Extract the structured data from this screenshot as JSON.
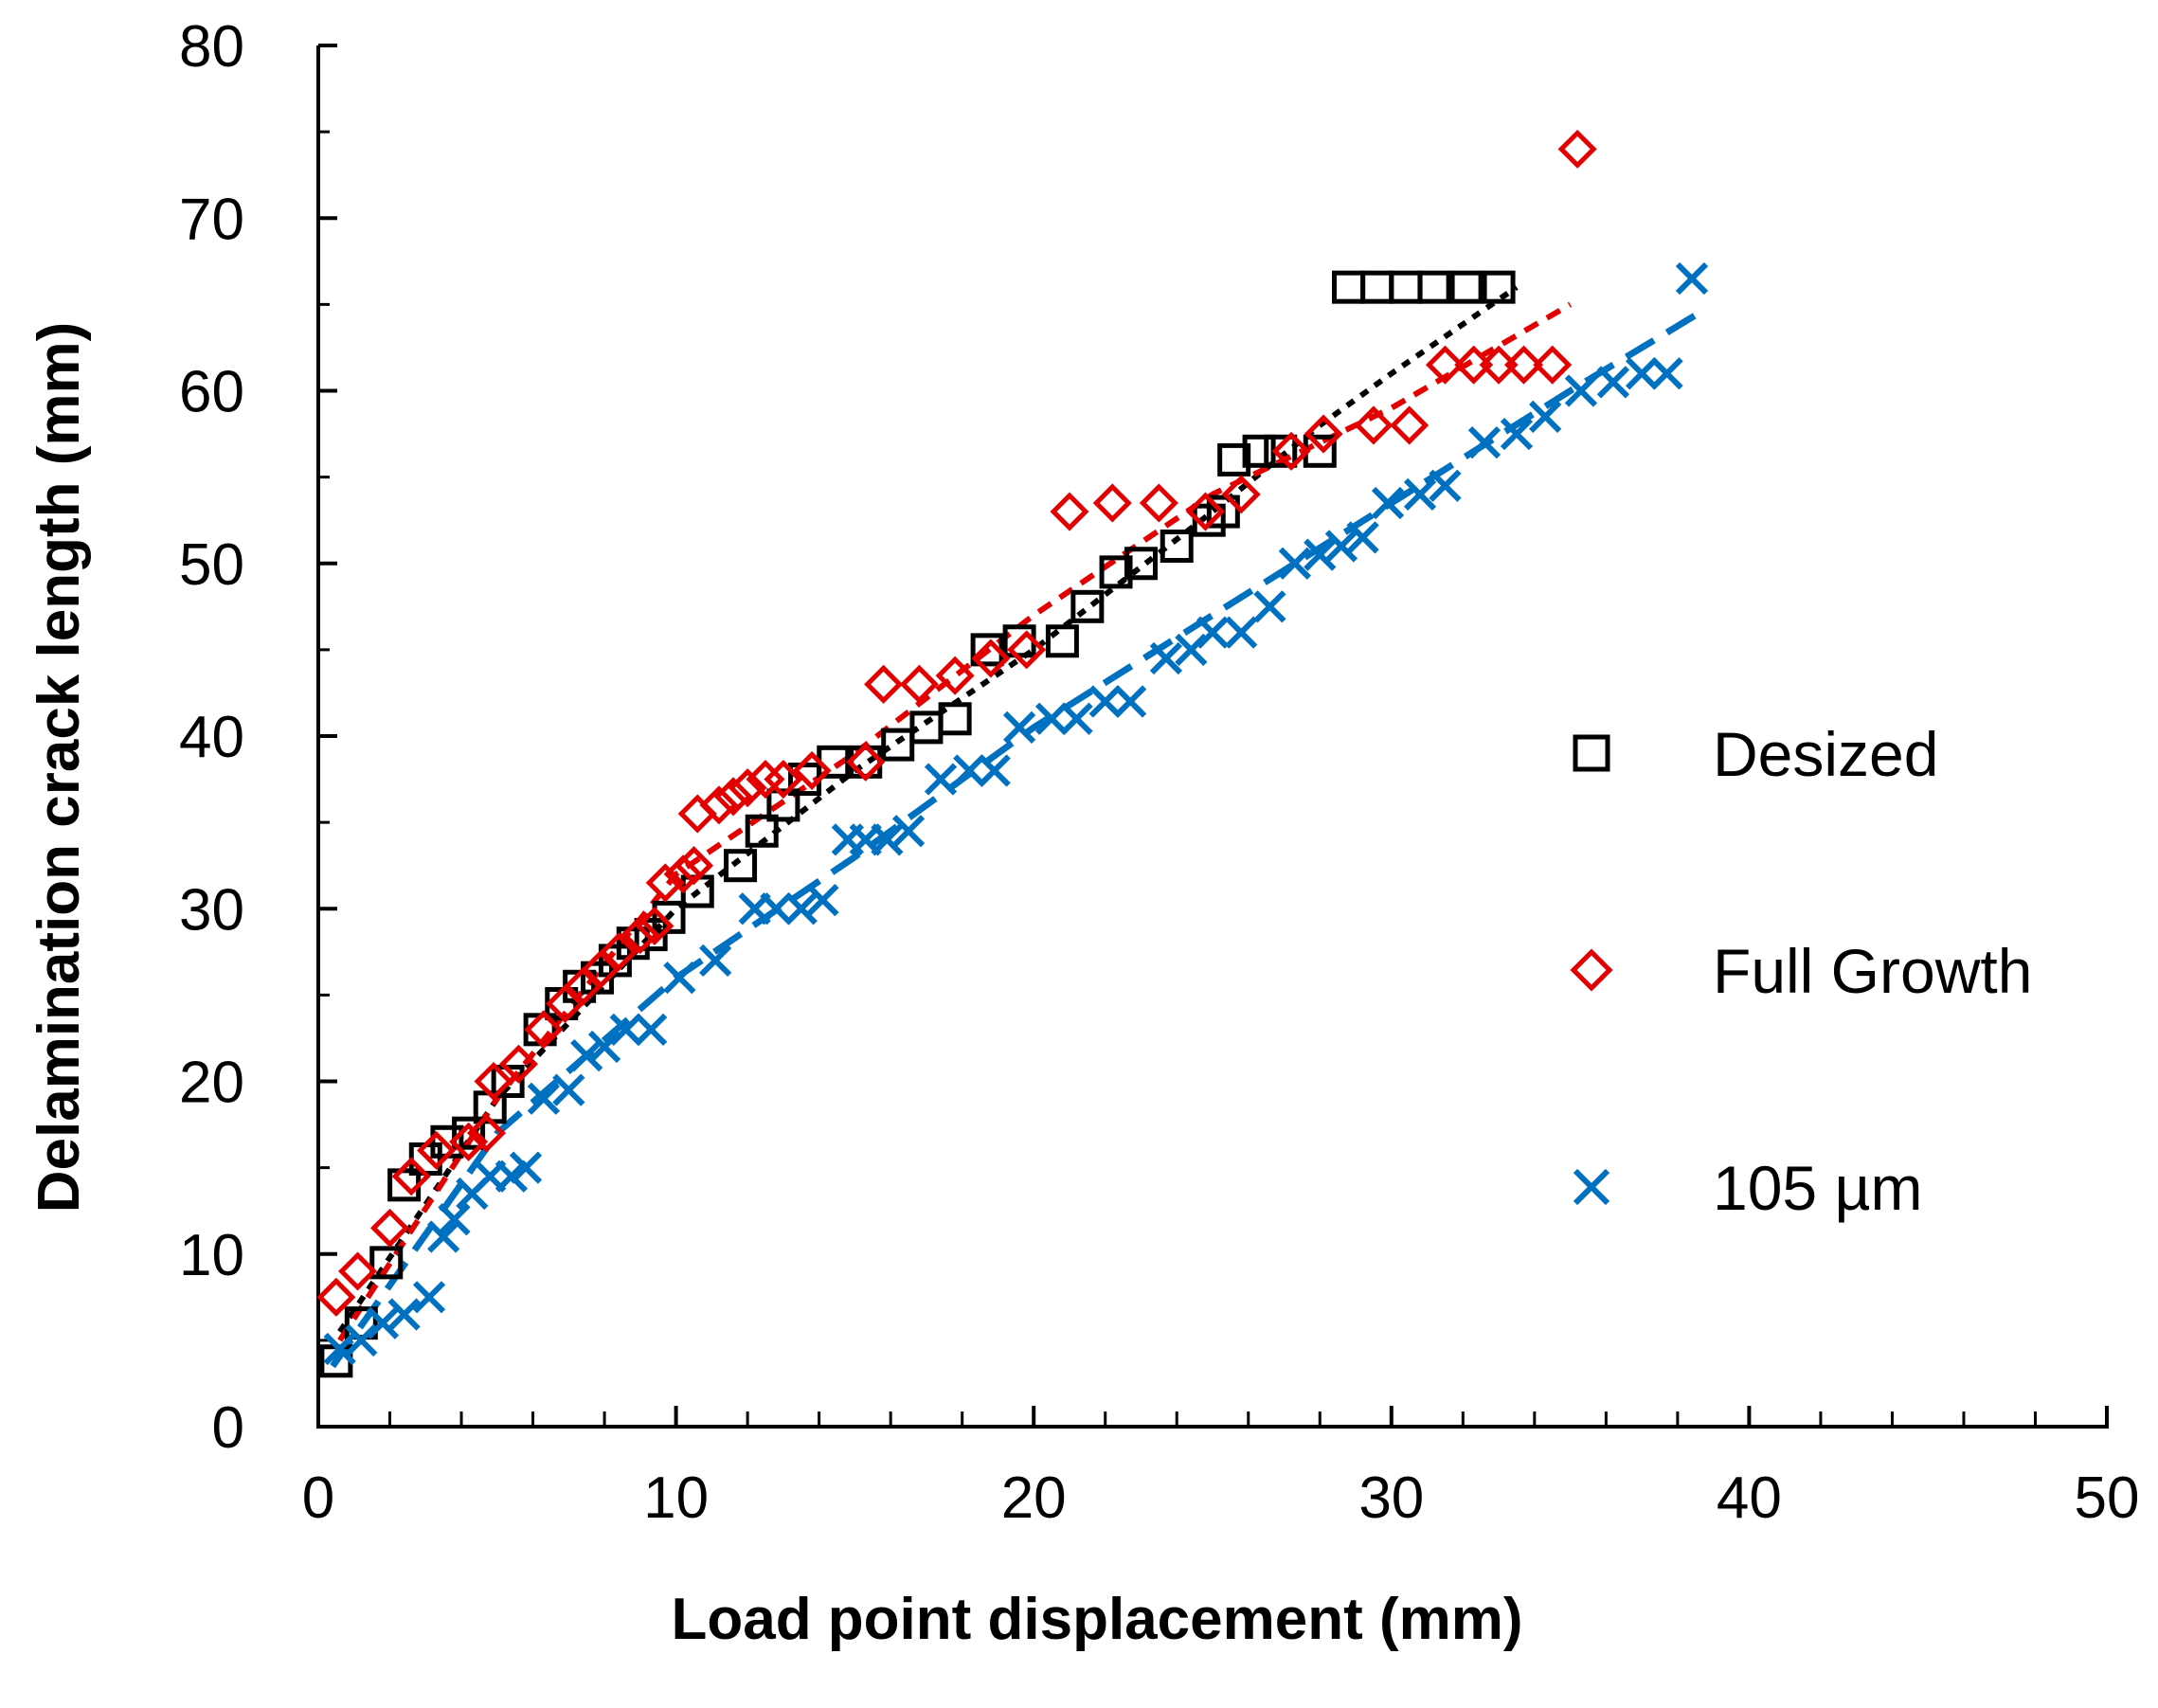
{
  "chart_data": {
    "type": "scatter",
    "title": "",
    "xlabel": "Load point displacement (mm)",
    "ylabel": "Delamination crack length (mm)",
    "xlim": [
      0,
      50
    ],
    "ylim": [
      0,
      80
    ],
    "xticks": [
      "0",
      "10",
      "20",
      "30",
      "40",
      "50"
    ],
    "yticks": [
      "0",
      "10",
      "20",
      "30",
      "40",
      "50",
      "60",
      "70",
      "80"
    ],
    "grid": false,
    "legend_position": "right",
    "series": [
      {
        "name": "Desized",
        "marker": "square",
        "color": "#000000",
        "trend": [
          [
            0.6,
            5.5
          ],
          [
            5,
            19
          ],
          [
            10,
            30
          ],
          [
            15,
            38
          ],
          [
            20,
            45
          ],
          [
            25,
            53
          ],
          [
            28,
            58
          ],
          [
            30,
            61
          ],
          [
            33.5,
            66
          ]
        ],
        "points": [
          [
            0.5,
            3.8
          ],
          [
            1.2,
            6
          ],
          [
            1.9,
            9.5
          ],
          [
            2.4,
            14
          ],
          [
            3,
            15.5
          ],
          [
            3.6,
            16.5
          ],
          [
            4.2,
            17
          ],
          [
            4.8,
            18.5
          ],
          [
            5.3,
            20
          ],
          [
            6.2,
            23
          ],
          [
            6.8,
            24.5
          ],
          [
            7.3,
            25.5
          ],
          [
            7.8,
            26
          ],
          [
            8.3,
            27
          ],
          [
            8.8,
            28
          ],
          [
            9.3,
            28.5
          ],
          [
            9.8,
            29.5
          ],
          [
            10.6,
            31
          ],
          [
            11.8,
            32.5
          ],
          [
            12.4,
            34.5
          ],
          [
            13,
            36
          ],
          [
            13.6,
            37.5
          ],
          [
            14.4,
            38.5
          ],
          [
            15.3,
            38.5
          ],
          [
            16.2,
            39.5
          ],
          [
            17,
            40.5
          ],
          [
            17.8,
            41
          ],
          [
            18.7,
            45
          ],
          [
            19.6,
            45.5
          ],
          [
            20.8,
            45.5
          ],
          [
            21.5,
            47.5
          ],
          [
            22.3,
            49.5
          ],
          [
            23,
            50
          ],
          [
            24,
            51
          ],
          [
            24.9,
            52.5
          ],
          [
            25.3,
            53
          ],
          [
            25.6,
            56
          ],
          [
            26.3,
            56.5
          ],
          [
            26.9,
            56.5
          ],
          [
            28,
            56.5
          ],
          [
            28.8,
            66
          ],
          [
            29.6,
            66
          ],
          [
            30.4,
            66
          ],
          [
            31.2,
            66
          ],
          [
            32.1,
            66
          ],
          [
            33,
            66
          ]
        ]
      },
      {
        "name": "Full Growth",
        "marker": "diamond",
        "color": "#e30000",
        "trend": [
          [
            0.6,
            5
          ],
          [
            5,
            19
          ],
          [
            10,
            32
          ],
          [
            15,
            39
          ],
          [
            20,
            47
          ],
          [
            25,
            54
          ],
          [
            30,
            59
          ],
          [
            35,
            65
          ]
        ],
        "points": [
          [
            0.5,
            7.5
          ],
          [
            1.1,
            9
          ],
          [
            2,
            11.5
          ],
          [
            2.6,
            14.5
          ],
          [
            3.3,
            16
          ],
          [
            4.2,
            16.5
          ],
          [
            4.7,
            17
          ],
          [
            4.9,
            20
          ],
          [
            5.6,
            21
          ],
          [
            6.3,
            23
          ],
          [
            6.9,
            24.5
          ],
          [
            7.4,
            25.5
          ],
          [
            7.9,
            26.5
          ],
          [
            8.4,
            27.5
          ],
          [
            9,
            28.5
          ],
          [
            9.4,
            29
          ],
          [
            9.7,
            31.5
          ],
          [
            10.2,
            32
          ],
          [
            10.5,
            32.5
          ],
          [
            10.6,
            35.5
          ],
          [
            11.2,
            36
          ],
          [
            11.6,
            36.5
          ],
          [
            12,
            37
          ],
          [
            12.5,
            37.5
          ],
          [
            13,
            37.5
          ],
          [
            13.8,
            38
          ],
          [
            15.3,
            38.5
          ],
          [
            15.8,
            43
          ],
          [
            16.8,
            43
          ],
          [
            17.8,
            43.5
          ],
          [
            18.8,
            44.5
          ],
          [
            19.8,
            45
          ],
          [
            21,
            53
          ],
          [
            22.2,
            53.5
          ],
          [
            23.5,
            53.5
          ],
          [
            24.8,
            53
          ],
          [
            25.8,
            54
          ],
          [
            27.2,
            56.5
          ],
          [
            28.1,
            57.5
          ],
          [
            29.5,
            58
          ],
          [
            30.5,
            58
          ],
          [
            31.5,
            61.5
          ],
          [
            32.3,
            61.5
          ],
          [
            33,
            61.5
          ],
          [
            33.7,
            61.5
          ],
          [
            34.5,
            61.5
          ],
          [
            35.2,
            74
          ]
        ]
      },
      {
        "name": "105 µm",
        "marker": "x",
        "color": "#0070c0",
        "trend": [
          [
            0.4,
            3.5
          ],
          [
            5,
            17
          ],
          [
            10,
            26
          ],
          [
            15,
            33
          ],
          [
            20,
            40.5
          ],
          [
            25,
            47
          ],
          [
            30,
            53.5
          ],
          [
            35,
            60
          ],
          [
            38.6,
            64.5
          ]
        ],
        "points": [
          [
            0.6,
            4.5
          ],
          [
            1.2,
            5
          ],
          [
            1.8,
            6
          ],
          [
            2.4,
            6.5
          ],
          [
            3.1,
            7.5
          ],
          [
            3.5,
            11
          ],
          [
            3.8,
            12
          ],
          [
            4.3,
            13.5
          ],
          [
            4.8,
            14.5
          ],
          [
            5.4,
            14.5
          ],
          [
            5.8,
            15
          ],
          [
            6.3,
            19
          ],
          [
            7,
            19.5
          ],
          [
            7.5,
            21.5
          ],
          [
            8,
            22
          ],
          [
            8.6,
            23
          ],
          [
            9.3,
            23
          ],
          [
            10.1,
            26
          ],
          [
            11.1,
            27
          ],
          [
            12.2,
            30
          ],
          [
            12.8,
            30
          ],
          [
            13.5,
            30
          ],
          [
            14.1,
            30.5
          ],
          [
            14.8,
            34
          ],
          [
            15.3,
            34
          ],
          [
            15.9,
            34
          ],
          [
            16.5,
            34.5
          ],
          [
            17.4,
            37.5
          ],
          [
            18.2,
            38
          ],
          [
            18.9,
            38
          ],
          [
            19.6,
            40.5
          ],
          [
            20.5,
            41
          ],
          [
            21.2,
            41
          ],
          [
            22,
            42
          ],
          [
            22.7,
            42
          ],
          [
            23.7,
            44.5
          ],
          [
            24.4,
            45
          ],
          [
            25,
            46
          ],
          [
            25.8,
            46
          ],
          [
            26.6,
            47.5
          ],
          [
            27.3,
            50
          ],
          [
            28,
            50.5
          ],
          [
            28.6,
            51
          ],
          [
            29.2,
            51.5
          ],
          [
            29.9,
            53.5
          ],
          [
            30.8,
            54
          ],
          [
            31.5,
            54.5
          ],
          [
            32.6,
            57
          ],
          [
            33.5,
            57.5
          ],
          [
            34.3,
            58.5
          ],
          [
            35.3,
            60
          ],
          [
            36.2,
            60.5
          ],
          [
            37,
            61
          ],
          [
            37.7,
            61
          ],
          [
            38.4,
            66.5
          ]
        ]
      }
    ]
  }
}
